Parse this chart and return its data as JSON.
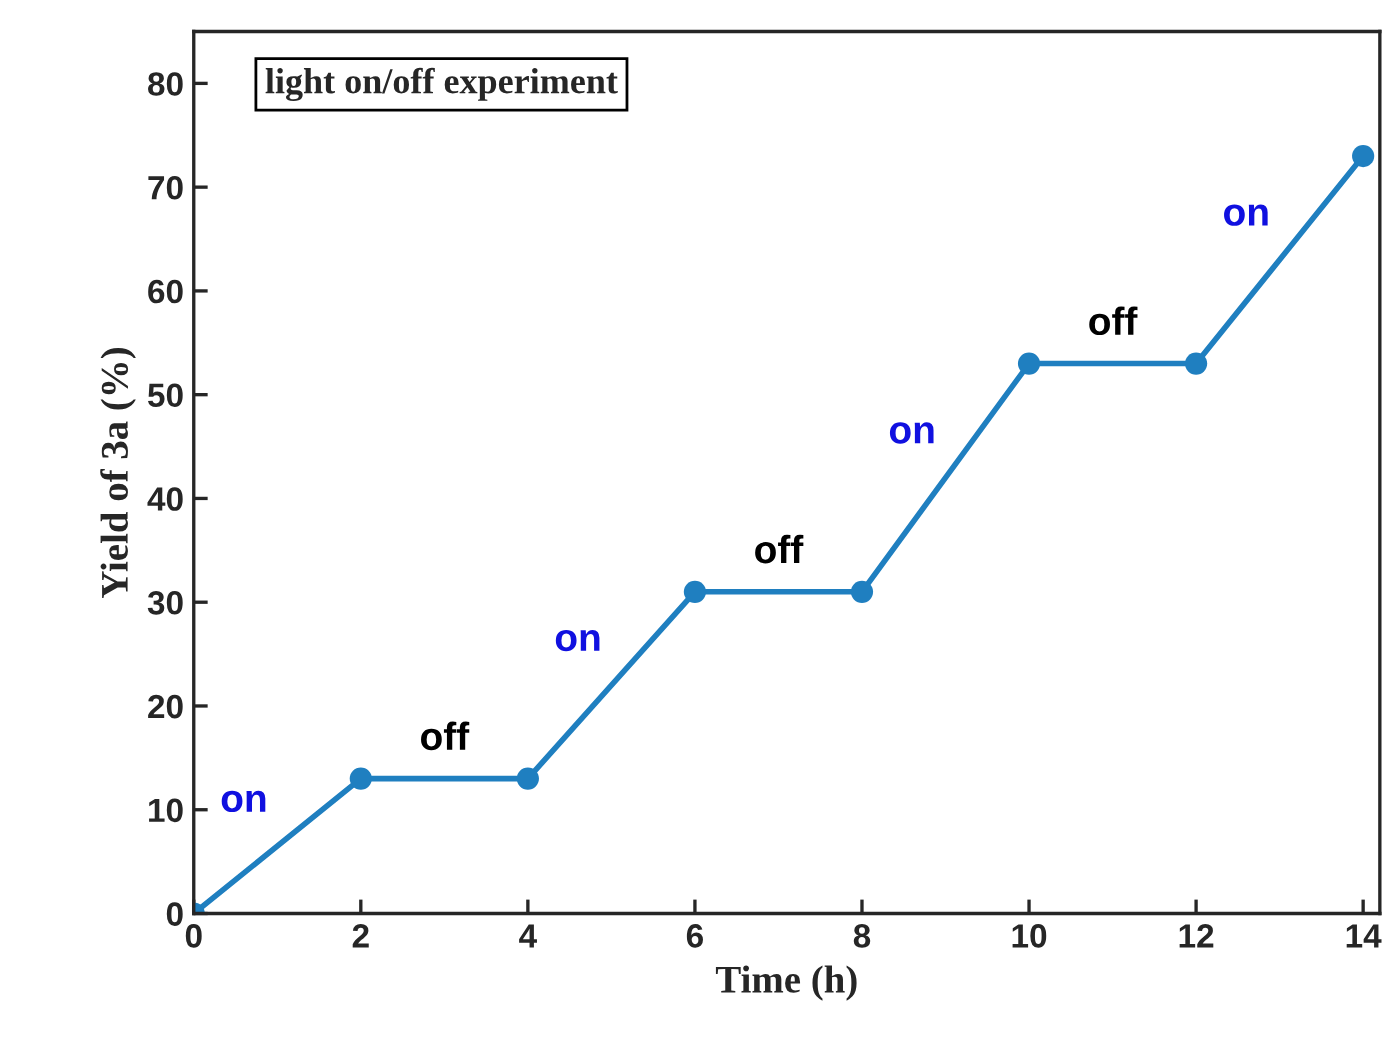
{
  "chart_data": {
    "type": "line",
    "xlabel": "Time (h)",
    "ylabel": "Yield of 3a (%)",
    "x": [
      0,
      2,
      4,
      6,
      8,
      10,
      12,
      14
    ],
    "series": [
      {
        "color": "#1f7fc0",
        "values": [
          0,
          13,
          13,
          31,
          31,
          53,
          53,
          73
        ]
      }
    ],
    "xlim": [
      0,
      14.2
    ],
    "ylim": [
      0,
      85
    ],
    "xticks": [
      0,
      2,
      4,
      6,
      8,
      10,
      12,
      14
    ],
    "yticks": [
      0,
      10,
      20,
      30,
      40,
      50,
      60,
      70,
      80
    ],
    "marker": "circle",
    "line_style": "solid",
    "grid": false,
    "annotations": [
      "light on/off experiment",
      "on",
      "off",
      "on",
      "off",
      "on",
      "off",
      "on"
    ]
  }
}
